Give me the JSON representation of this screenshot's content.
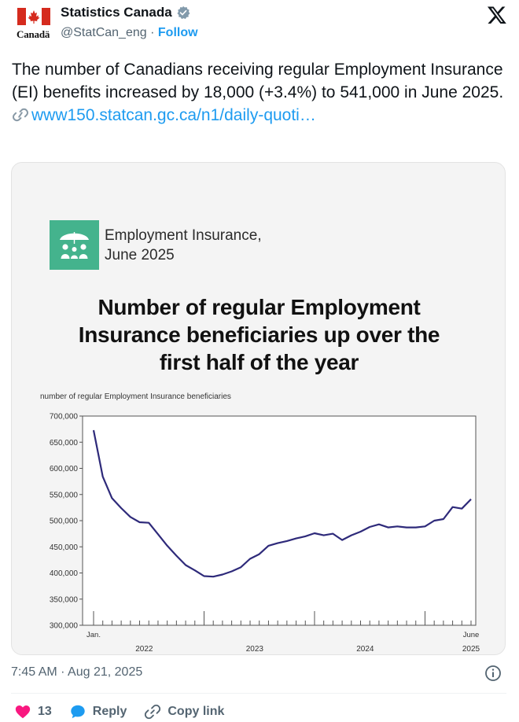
{
  "account": {
    "display_name": "Statistics Canada",
    "wordmark": "Canadä",
    "handle": "@StatCan_eng",
    "separator": "·",
    "follow_label": "Follow"
  },
  "tweet": {
    "text": "The number of Canadians receiving regular Employment Insurance (EI) benefits increased by 18,000 (+3.4%) to 541,000 in June 2025.",
    "link_text": "www150.statcan.gc.ca/n1/daily-quoti…",
    "timestamp": "7:45 AM · Aug 21, 2025"
  },
  "card": {
    "subtitle_line1": "Employment Insurance,",
    "subtitle_line2": "June 2025",
    "headline_line1": "Number of regular Employment",
    "headline_line2": "Insurance beneficiaries up over the",
    "headline_line3": "first half of the year"
  },
  "actions": {
    "like_count": "13",
    "reply_label": "Reply",
    "copy_link_label": "Copy link"
  },
  "colors": {
    "brand_blue": "#1d9bf0",
    "like_red": "#f91880",
    "badge_green": "#44b38d",
    "line_navy": "#2e2a7a"
  },
  "chart_data": {
    "type": "line",
    "ylabel": "number of regular Employment Insurance beneficiaries",
    "ylim": [
      300000,
      700000
    ],
    "y_ticks": [
      300000,
      350000,
      400000,
      450000,
      500000,
      550000,
      600000,
      650000,
      700000
    ],
    "y_tick_labels": [
      "300,000",
      "350,000",
      "400,000",
      "450,000",
      "500,000",
      "550,000",
      "600,000",
      "650,000",
      "700,000"
    ],
    "x_labels_top": [
      {
        "index": 0,
        "text": "Jan."
      },
      {
        "index": 41,
        "text": "June"
      }
    ],
    "x_labels_bottom": [
      {
        "index": 5.5,
        "text": "2022"
      },
      {
        "index": 17.5,
        "text": "2023"
      },
      {
        "index": 29.5,
        "text": "2024"
      },
      {
        "index": 41,
        "text": "2025"
      }
    ],
    "year_separators": [
      0,
      12,
      24,
      36
    ],
    "months": 42,
    "series": [
      {
        "values": [
          673000,
          584000,
          543000,
          524000,
          507000,
          497000,
          496000,
          474000,
          452000,
          433000,
          415000,
          405000,
          394000,
          393000,
          397000,
          403000,
          411000,
          427000,
          436000,
          452000,
          457000,
          461000,
          466000,
          470000,
          476000,
          472000,
          475000,
          463000,
          472000,
          479000,
          488000,
          493000,
          487000,
          489000,
          487000,
          487000,
          489000,
          500000,
          503000,
          526000,
          523000,
          541000
        ]
      }
    ]
  }
}
